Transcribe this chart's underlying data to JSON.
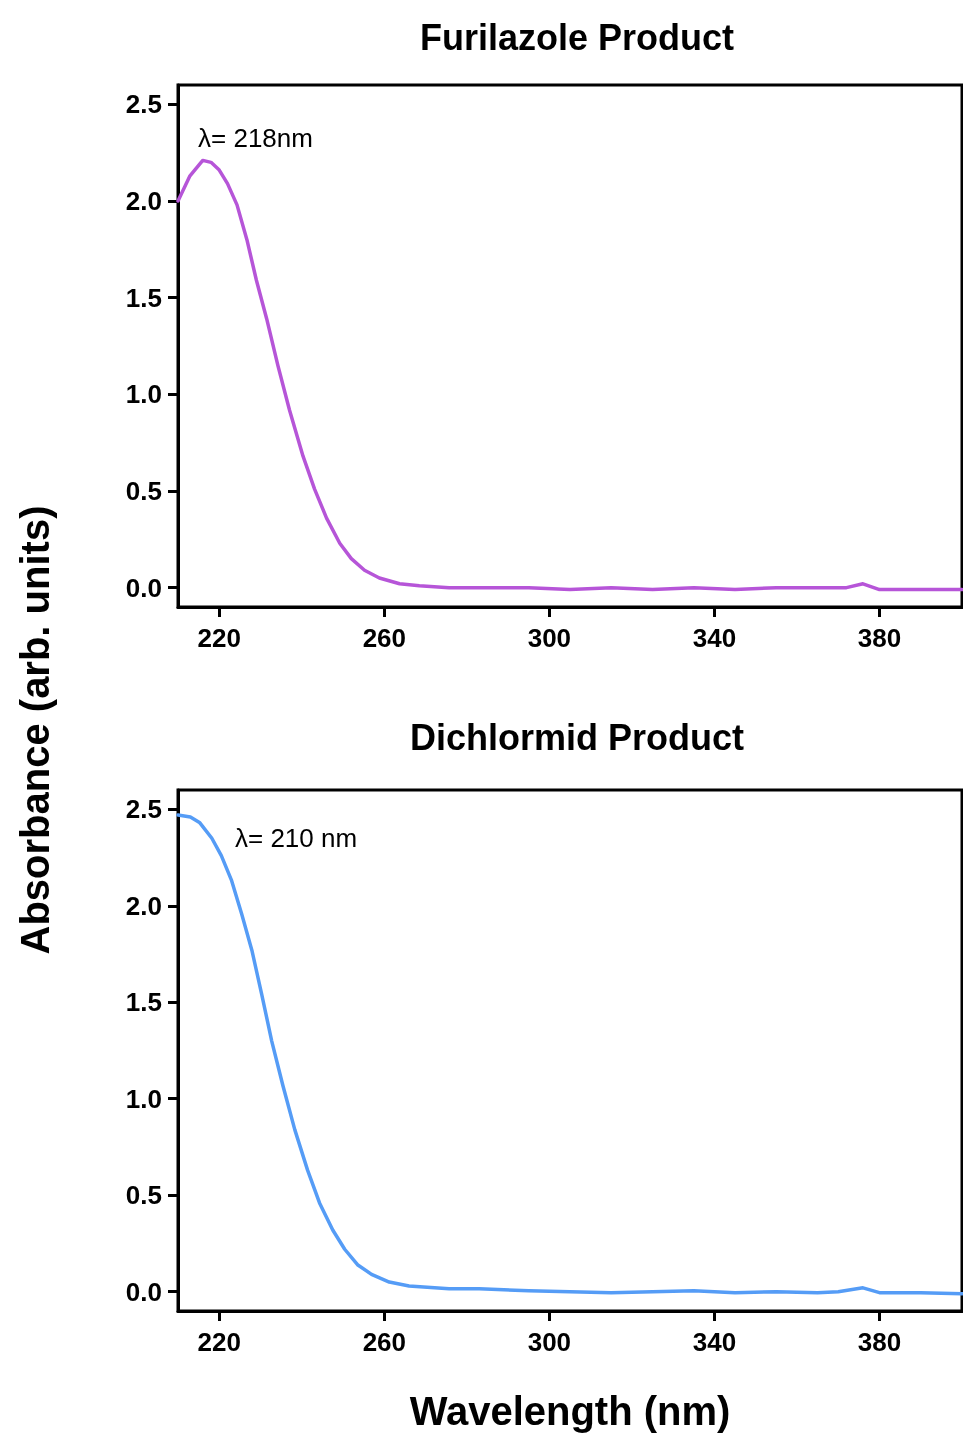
{
  "chart_data": [
    {
      "type": "line",
      "title": "Furilazole Product",
      "ylabel": "Absorbance (arb. units)",
      "series": [
        {
          "color": "#b655d8",
          "x": [
            210,
            212.9,
            216,
            218,
            220,
            222,
            224.3,
            226.7,
            229,
            231.5,
            234.2,
            237,
            240.3,
            243.1,
            246,
            249.2,
            252,
            255.2,
            258.8,
            263.7,
            268.5,
            275.7,
            285,
            295,
            305,
            315,
            325,
            335,
            345,
            355,
            365,
            372,
            376,
            380,
            390,
            400
          ],
          "values": [
            2.0,
            2.13,
            2.21,
            2.2,
            2.16,
            2.09,
            1.98,
            1.8,
            1.59,
            1.39,
            1.15,
            0.92,
            0.68,
            0.51,
            0.36,
            0.23,
            0.15,
            0.09,
            0.05,
            0.02,
            0.01,
            0.0,
            0.0,
            0.0,
            -0.01,
            0.0,
            -0.01,
            0.0,
            -0.01,
            0.0,
            0.0,
            0.0,
            0.02,
            -0.01,
            -0.01,
            -0.01
          ]
        }
      ],
      "annotations": [
        {
          "text": "λ= 218nm",
          "x": 218,
          "y": 2.2
        }
      ],
      "xlim": [
        210,
        400
      ],
      "xticks": [
        220,
        260,
        300,
        340,
        380
      ],
      "ylim": [
        -0.1,
        2.6
      ],
      "yticks": [
        {
          "value": 0,
          "label": "0.0"
        },
        {
          "value": 0.5,
          "label": "0.5"
        },
        {
          "value": 1,
          "label": "1.0"
        },
        {
          "value": 1.5,
          "label": "1.5"
        },
        {
          "value": 2,
          "label": "2.0"
        },
        {
          "value": 2.5,
          "label": "2.5"
        }
      ],
      "grid": false,
      "marker": "none",
      "line_style": "solid"
    },
    {
      "type": "line",
      "title": "Dichlormid Product",
      "xlabel": "Wavelength (nm)",
      "series": [
        {
          "color": "#559cf6",
          "x": [
            210,
            213,
            215.3,
            218.2,
            220.5,
            223,
            225.4,
            227.9,
            230.3,
            232.7,
            235.4,
            238.3,
            241.4,
            244.3,
            247.5,
            250.4,
            253.5,
            256.9,
            261.2,
            266,
            275.7,
            283,
            295,
            305,
            315,
            325,
            335,
            345,
            355,
            365,
            370,
            376,
            380,
            390,
            400
          ],
          "values": [
            2.47,
            2.46,
            2.43,
            2.35,
            2.26,
            2.13,
            1.96,
            1.77,
            1.54,
            1.3,
            1.07,
            0.84,
            0.63,
            0.46,
            0.32,
            0.22,
            0.14,
            0.09,
            0.05,
            0.03,
            0.015,
            0.015,
            0.005,
            0.0,
            -0.005,
            0.0,
            0.005,
            -0.005,
            0.0,
            -0.005,
            0.0,
            0.02,
            -0.005,
            -0.005,
            -0.01
          ]
        }
      ],
      "annotations": [
        {
          "text": "λ= 210 nm",
          "x": 210,
          "y": 2.47
        }
      ],
      "xlim": [
        210,
        400
      ],
      "xticks": [
        220,
        260,
        300,
        340,
        380
      ],
      "ylim": [
        -0.1,
        2.6
      ],
      "yticks": [
        {
          "value": 0,
          "label": "0.0"
        },
        {
          "value": 0.5,
          "label": "0.5"
        },
        {
          "value": 1,
          "label": "1.0"
        },
        {
          "value": 1.5,
          "label": "1.5"
        },
        {
          "value": 2,
          "label": "2.0"
        },
        {
          "value": 2.5,
          "label": "2.5"
        }
      ],
      "grid": false,
      "marker": "none",
      "line_style": "solid"
    }
  ]
}
